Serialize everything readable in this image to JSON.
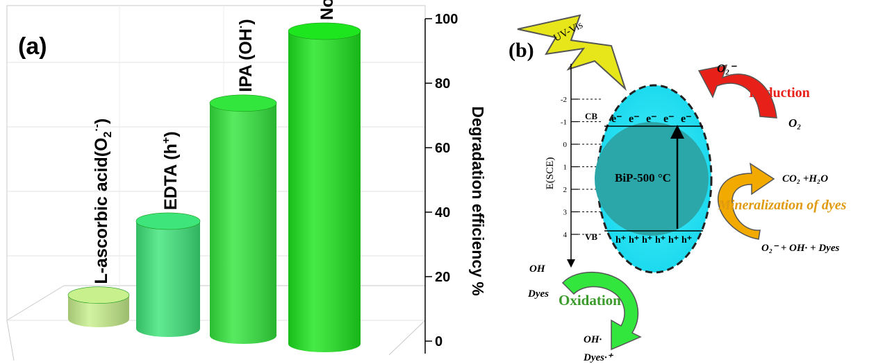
{
  "chart_data": [
    {
      "type": "bar",
      "panel_label": "(a)",
      "categories": [
        "L-ascorbic acid(O2•−)",
        "EDTA (h+)",
        "IPA (OH•)",
        "No Scavengers"
      ],
      "bar_labels": [
        {
          "main": "L-ascorbic acid(O",
          "sub": "2",
          "sup": "·-",
          "tail": ")"
        },
        {
          "main": "EDTA (h",
          "sub": "",
          "sup": "+",
          "tail": ")"
        },
        {
          "main": "IPA (OH",
          "sub": "",
          "sup": "·",
          "tail": ")"
        },
        {
          "main": "No Scavengers",
          "sub": "",
          "sup": "",
          "tail": ""
        }
      ],
      "values": [
        8,
        35,
        74,
        97
      ],
      "colors": [
        "#c8f08c",
        "#3ee57a",
        "#33e63d",
        "#1ee61e"
      ],
      "ylabel": "Degradation efficiency %",
      "ylim": [
        0,
        100
      ],
      "yticks": [
        "0",
        "20",
        "40",
        "60",
        "80",
        "100"
      ],
      "grid": true,
      "style": "3d cylinders"
    }
  ],
  "schematic": {
    "panel_label": "(b)",
    "light": "UV-Vis",
    "axis_label": "E(SCE)",
    "potential_ticks": [
      "-2",
      "-1",
      "0",
      "1",
      "2",
      "3",
      "4"
    ],
    "cb_label": "CB",
    "vb_label": "VB",
    "electrons": [
      "e⁻",
      "e⁻",
      "e⁻",
      "e⁻",
      "e⁻"
    ],
    "holes": [
      "h⁺",
      "h⁺",
      "h⁺",
      "h⁺",
      "h⁺",
      "h⁺"
    ],
    "catalyst": "BiP-500 °C",
    "o2_radical": "O₂⁻",
    "reduction": "Reduction",
    "o2": "O₂",
    "co2_h2o": "CO₂ +H₂O",
    "mineralization": "Mineralization of dyes",
    "mineral_reactants": "O₂⁻ +   OH· + Dyes",
    "oh": "OH",
    "dyes": "Dyes",
    "oxidation": "Oxidation",
    "oh_radical": "OH·",
    "dyes_radical": "Dyes·⁺",
    "colors": {
      "reduction": "#e8201a",
      "mineralization": "#e09a10",
      "oxidation": "#3a9a2a",
      "oval": "#22e0f0",
      "core": "#2aa8a8"
    }
  }
}
